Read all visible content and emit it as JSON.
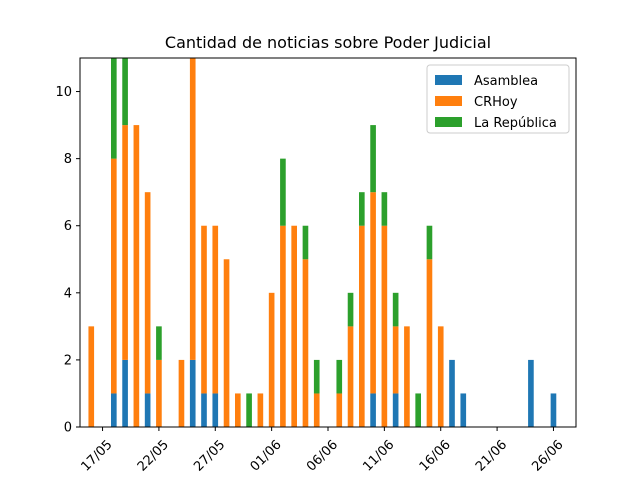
{
  "chart_data": {
    "type": "bar",
    "stacked": true,
    "title": "Cantidad de noticias sobre Poder Judicial",
    "xlabel": "",
    "ylabel": "",
    "dates": [
      "2020-05-15",
      "2020-05-16",
      "2020-05-17",
      "2020-05-18",
      "2020-05-19",
      "2020-05-20",
      "2020-05-21",
      "2020-05-22",
      "2020-05-23",
      "2020-05-24",
      "2020-05-25",
      "2020-05-26",
      "2020-05-27",
      "2020-05-28",
      "2020-05-29",
      "2020-05-30",
      "2020-05-31",
      "2020-06-01",
      "2020-06-02",
      "2020-06-03",
      "2020-06-04",
      "2020-06-05",
      "2020-06-06",
      "2020-06-07",
      "2020-06-08",
      "2020-06-09",
      "2020-06-10",
      "2020-06-11",
      "2020-06-12",
      "2020-06-13",
      "2020-06-14",
      "2020-06-15",
      "2020-06-16",
      "2020-06-17",
      "2020-06-18",
      "2020-06-19",
      "2020-06-20",
      "2020-06-21",
      "2020-06-22",
      "2020-06-23",
      "2020-06-24",
      "2020-06-25",
      "2020-06-26",
      "2020-06-27"
    ],
    "series": [
      {
        "name": "Asamblea",
        "color": "#1f77b4",
        "values": [
          0,
          0,
          0,
          1,
          2,
          0,
          1,
          0,
          0,
          0,
          2,
          1,
          1,
          0,
          0,
          0,
          0,
          0,
          0,
          0,
          0,
          0,
          0,
          0,
          0,
          0,
          1,
          0,
          1,
          0,
          0,
          0,
          0,
          2,
          1,
          0,
          0,
          0,
          0,
          0,
          2,
          0,
          1,
          0
        ]
      },
      {
        "name": "CRHoy",
        "color": "#ff7f0e",
        "values": [
          0,
          3,
          0,
          7,
          7,
          9,
          6,
          2,
          0,
          2,
          9,
          5,
          5,
          5,
          1,
          0,
          1,
          4,
          6,
          6,
          5,
          1,
          0,
          1,
          3,
          6,
          6,
          6,
          2,
          3,
          0,
          5,
          3,
          0,
          0,
          0,
          0,
          0,
          0,
          0,
          0,
          0,
          0,
          0
        ]
      },
      {
        "name": "La República",
        "color": "#2ca02c",
        "values": [
          0,
          0,
          0,
          3,
          2,
          0,
          0,
          1,
          0,
          0,
          0,
          0,
          0,
          0,
          0,
          1,
          0,
          0,
          2,
          0,
          1,
          1,
          0,
          1,
          1,
          1,
          2,
          1,
          1,
          0,
          1,
          1,
          0,
          0,
          0,
          0,
          0,
          0,
          0,
          0,
          0,
          0,
          0,
          0
        ]
      }
    ],
    "xticks": [
      {
        "date": "2020-05-17",
        "label": "17/05"
      },
      {
        "date": "2020-05-22",
        "label": "22/05"
      },
      {
        "date": "2020-05-27",
        "label": "27/05"
      },
      {
        "date": "2020-06-01",
        "label": "01/06"
      },
      {
        "date": "2020-06-06",
        "label": "06/06"
      },
      {
        "date": "2020-06-11",
        "label": "11/06"
      },
      {
        "date": "2020-06-16",
        "label": "16/06"
      },
      {
        "date": "2020-06-21",
        "label": "21/06"
      },
      {
        "date": "2020-06-26",
        "label": "26/06"
      }
    ],
    "yticks": [
      0,
      2,
      4,
      6,
      8,
      10
    ],
    "ylim": [
      0,
      11
    ],
    "xlim": [
      "2020-05-15",
      "2020-06-28"
    ],
    "grid": false,
    "legend_position": "upper right"
  }
}
